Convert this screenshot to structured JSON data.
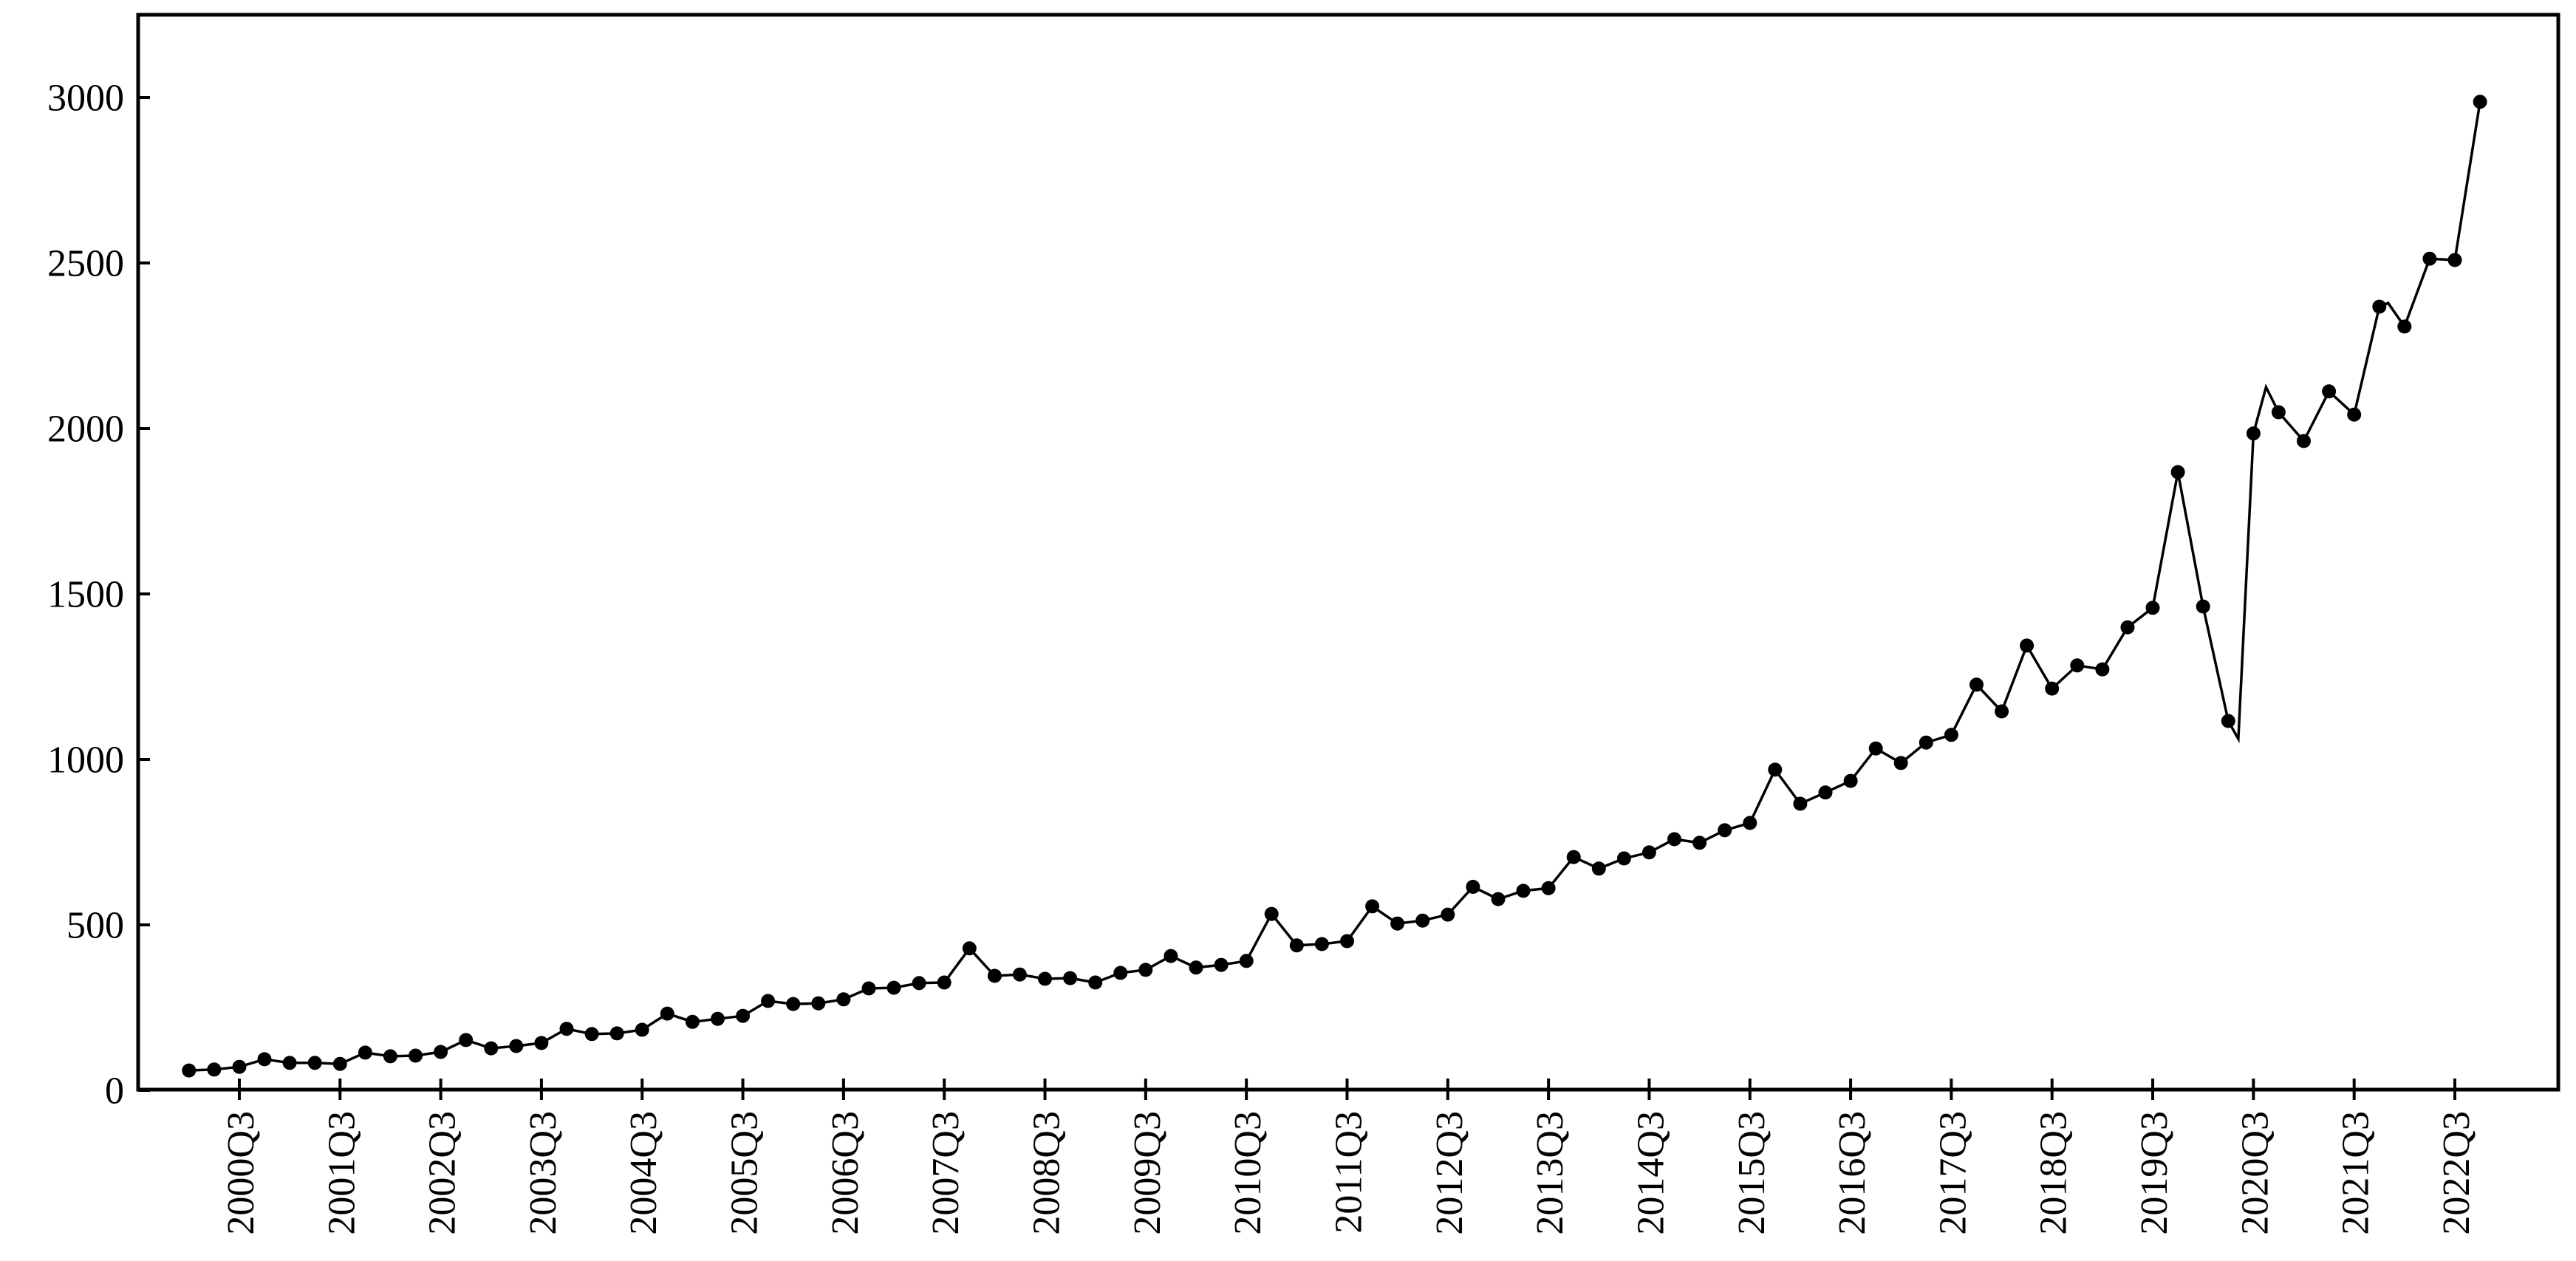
{
  "page": {
    "background_color": "#ffffff"
  },
  "chart_data": {
    "type": "line",
    "title": "",
    "xlabel": "",
    "ylabel": "",
    "grid": "off",
    "legend": "none",
    "line_color": "#000000",
    "marker": "filled-circle",
    "frame": "full-box",
    "y_ticks": [
      0,
      500,
      1000,
      1500,
      2000,
      2500,
      3000
    ],
    "y_tick_labels": [
      "0",
      "500",
      "1000",
      "1500",
      "2000",
      "2500",
      "3000"
    ],
    "ylim": [
      0,
      3250
    ],
    "x_tick_labels": [
      "2000Q3",
      "2001Q3",
      "2002Q3",
      "2003Q3",
      "2004Q3",
      "2005Q3",
      "2006Q3",
      "2007Q3",
      "2008Q3",
      "2009Q3",
      "2010Q3",
      "2011Q3",
      "2012Q3",
      "2013Q3",
      "2014Q3",
      "2015Q3",
      "2016Q3",
      "2017Q3",
      "2018Q3",
      "2019Q3",
      "2020Q3",
      "2021Q3",
      "2022Q3"
    ],
    "x_first_tick_label_index": 2,
    "x_tick_every_quarters": 4,
    "series": [
      {
        "name": "quarterly-values",
        "start": "2000Q1",
        "end": "2022Q4",
        "frequency": "quarterly",
        "values": [
          60,
          63,
          71,
          94,
          83,
          83,
          80,
          114,
          103,
          105,
          116,
          152,
          127,
          134,
          143,
          186,
          170,
          172,
          183,
          232,
          207,
          216,
          225,
          270,
          261,
          263,
          275,
          308,
          310,
          324,
          326,
          429,
          346,
          350,
          337,
          339,
          326,
          355,
          364,
          406,
          371,
          379,
          391,
          533,
          438,
          442,
          451,
          556,
          504,
          513,
          531,
          615,
          578,
          603,
          611,
          705,
          670,
          701,
          719,
          759,
          748,
          786,
          808,
          969,
          866,
          900,
          935,
          1033,
          989,
          1051,
          1074,
          1226,
          1145,
          1344,
          1214,
          1284,
          1272,
          1399,
          1458,
          1868,
          1462,
          1116,
          1985,
          2049,
          1962,
          2112,
          2042,
          2368,
          2308,
          2513,
          2509,
          2987
        ]
      }
    ],
    "line_extra_vertices": [
      {
        "i": 81.4,
        "v": 1062
      },
      {
        "i": 82.5,
        "v": 2125
      },
      {
        "i": 87.35,
        "v": 2379
      }
    ]
  }
}
